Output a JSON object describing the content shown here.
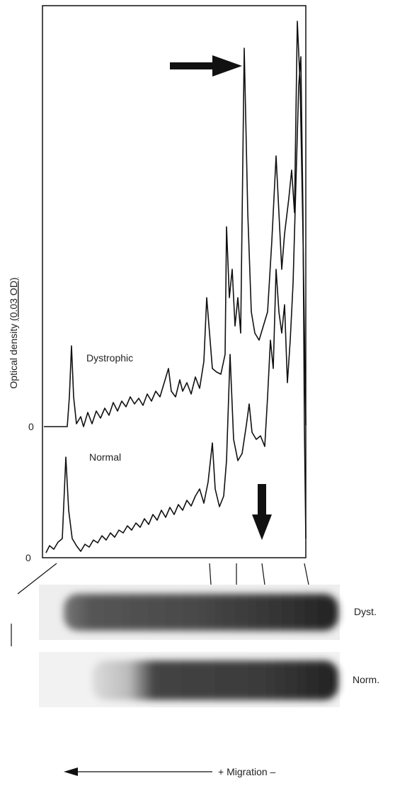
{
  "figure": {
    "y_axis_label": {
      "text": "Optical density",
      "scale": "(0.03 OD)"
    },
    "traces": [
      {
        "label": "Dystrophic",
        "baseline_label": "0"
      },
      {
        "label": "Normal",
        "baseline_label": "0"
      }
    ],
    "gels": [
      {
        "label": "Dyst."
      },
      {
        "label": "Norm."
      }
    ],
    "x_axis_label": "+ Migration –"
  }
}
